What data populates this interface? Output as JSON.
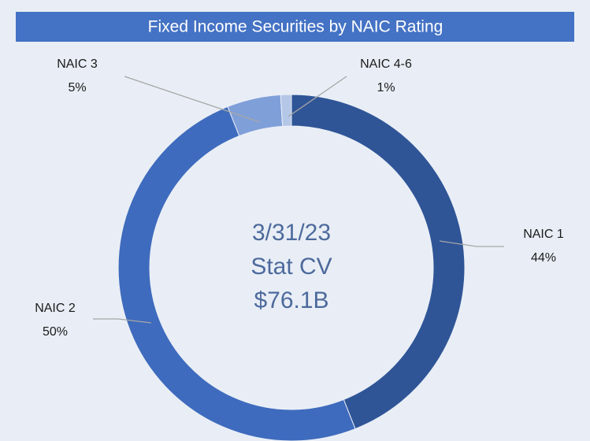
{
  "chart_data": {
    "type": "donut",
    "title": "Fixed Income Securities by NAIC Rating",
    "categories": [
      "NAIC 1",
      "NAIC 2",
      "NAIC 3",
      "NAIC 4-6"
    ],
    "values": [
      44,
      50,
      5,
      1
    ],
    "value_labels": [
      "44%",
      "50%",
      "5%",
      "1%"
    ],
    "colors": [
      "#2f5597",
      "#3e6bbd",
      "#7f9fd9",
      "#b4c7e7"
    ],
    "annotations": [
      "3/31/23",
      "Stat CV",
      "$76.1B"
    ]
  }
}
